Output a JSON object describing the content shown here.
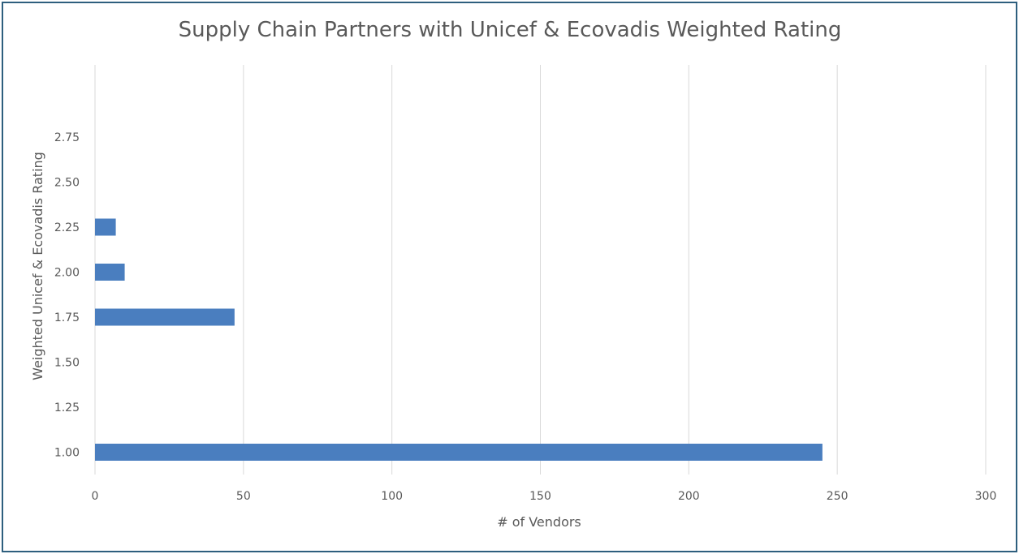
{
  "chart_data": {
    "type": "bar",
    "orientation": "horizontal",
    "title": "Supply Chain Partners with Unicef & Ecovadis Weighted Rating",
    "xlabel": "# of Vendors",
    "ylabel": "Weighted Unicef & Ecovadis Rating",
    "categories": [
      "1.00",
      "1.25",
      "1.50",
      "1.75",
      "2.00",
      "2.25",
      "2.50",
      "2.75"
    ],
    "values": [
      245,
      0,
      0,
      47,
      10,
      7,
      0,
      0
    ],
    "x_ticks": [
      "0",
      "50",
      "100",
      "150",
      "200",
      "250",
      "300"
    ],
    "xlim": [
      0,
      300
    ],
    "grid": "vertical",
    "legend": "none",
    "bar_color": "#4a7ebf",
    "grid_color": "#d9d9d9",
    "text_color": "#595959",
    "border_color": "#2e5f7e"
  }
}
